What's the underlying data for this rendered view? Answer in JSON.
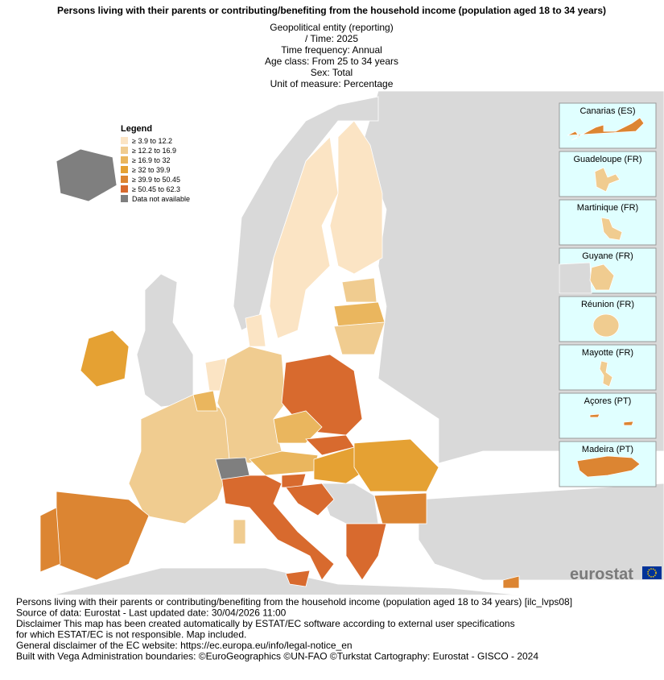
{
  "title": "Persons living with their parents or contributing/benefiting from the household income (population aged 18 to 34 years)",
  "subtitle": [
    "Geopolitical entity (reporting)",
    "/ Time:  2025",
    "Time frequency:  Annual",
    "Age class:  From 25 to 34 years",
    "Sex:  Total",
    "Unit of measure:  Percentage"
  ],
  "legend": {
    "title": "Legend",
    "items": [
      {
        "label": "≥ 3.9 to 12.2",
        "color": "#fbe4c4"
      },
      {
        "label": "≥ 12.2 to 16.9",
        "color": "#f0cc90"
      },
      {
        "label": "≥ 16.9 to 32",
        "color": "#eab65e"
      },
      {
        "label": "≥ 32 to 39.9",
        "color": "#e5a133"
      },
      {
        "label": "≥ 39.9 to 50.45",
        "color": "#dc8532"
      },
      {
        "label": "≥ 50.45 to 62.3",
        "color": "#d86a2e"
      },
      {
        "label": "Data not available",
        "color": "#7f7f7f"
      }
    ]
  },
  "insets": [
    "Canarias (ES)",
    "Guadeloupe (FR)",
    "Martinique (FR)",
    "Guyane (FR)",
    "Réunion (FR)",
    "Mayotte (FR)",
    "Açores (PT)",
    "Madeira (PT)"
  ],
  "logo": "eurostat",
  "footer": [
    "Persons living with their parents or contributing/benefiting from the household income (population aged 18 to 34 years) [ilc_lvps08]",
    "Source of data: Eurostat - Last updated date: 30/04/2026 11:00",
    "Disclaimer This map has been created automatically by ESTAT/EC software according to external user specifications",
    "for which ESTAT/EC is not responsible. Map included.",
    "General disclaimer of the EC website: https://ec.europa.eu/info/legal-notice_en",
    "Built with Vega Administration boundaries: ©EuroGeographics ©UN-FAO ©Turkstat Cartography: Eurostat - GISCO - 2024"
  ]
}
